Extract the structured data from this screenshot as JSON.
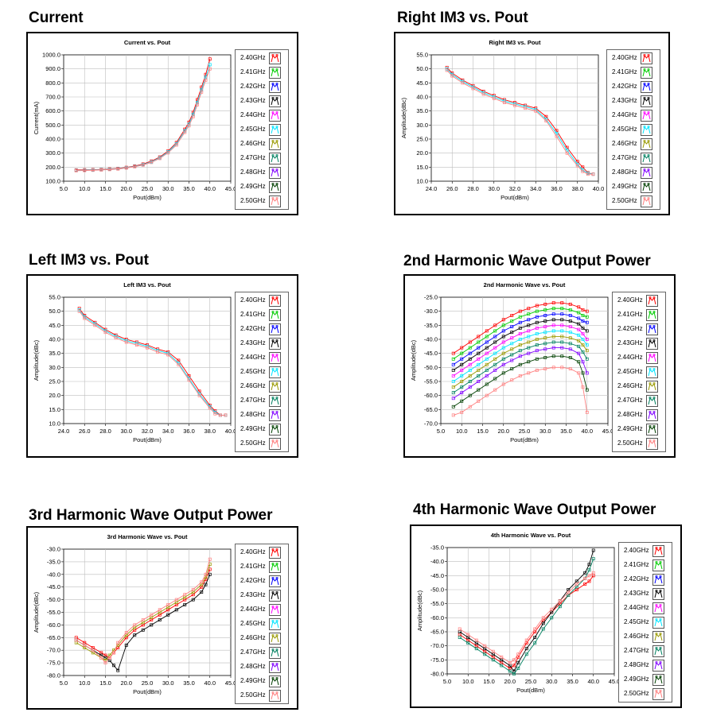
{
  "frequencies": [
    "2.40GHz",
    "2.41GHz",
    "2.42GHz",
    "2.43GHz",
    "2.44GHz",
    "2.45GHz",
    "2.46GHz",
    "2.47GHz",
    "2.48GHz",
    "2.49GHz",
    "2.50GHz"
  ],
  "series_colors": [
    "#ff0000",
    "#00cc00",
    "#0000ff",
    "#000000",
    "#ff00ff",
    "#00e5ff",
    "#999900",
    "#008060",
    "#8000ff",
    "#004000",
    "#ff8080"
  ],
  "chart_data": [
    {
      "id": "current",
      "section_title": "Current",
      "type": "line",
      "title": "Current vs. Pout",
      "xlabel": "Pout(dBm)",
      "ylabel": "Current(mA)",
      "xlim": [
        5,
        45
      ],
      "ylim": [
        100,
        1000
      ],
      "xticks": [
        "5.0",
        "10.0",
        "15.0",
        "20.0",
        "25.0",
        "30.0",
        "35.0",
        "40.0",
        "45.0"
      ],
      "yticks": [
        "100.0",
        "200.0",
        "300.0",
        "400.0",
        "500.0",
        "600.0",
        "700.0",
        "800.0",
        "900.0",
        "1000.0"
      ],
      "x": [
        8,
        10,
        12,
        14,
        16,
        18,
        20,
        22,
        24,
        26,
        28,
        30,
        32,
        34,
        35,
        36,
        37,
        38,
        39,
        40
      ],
      "series": [
        {
          "name": "2.40GHz",
          "values": [
            180,
            181,
            182,
            184,
            187,
            191,
            198,
            208,
            222,
            243,
            272,
            315,
            375,
            470,
            520,
            590,
            680,
            770,
            860,
            970
          ]
        },
        {
          "name": "2.45GHz",
          "values": [
            177,
            178,
            180,
            182,
            185,
            189,
            196,
            205,
            218,
            238,
            266,
            308,
            366,
            458,
            505,
            575,
            660,
            750,
            840,
            930
          ]
        },
        {
          "name": "2.50GHz",
          "values": [
            175,
            176,
            178,
            180,
            183,
            187,
            194,
            203,
            215,
            234,
            262,
            302,
            358,
            448,
            495,
            560,
            645,
            735,
            820,
            900
          ]
        }
      ]
    },
    {
      "id": "right-im3",
      "section_title": "Right IM3 vs. Pout",
      "type": "line",
      "title": "Right IM3 vs. Pout",
      "xlabel": "Pout(dBm)",
      "ylabel": "Amplitude(dBc)",
      "xlim": [
        24,
        40
      ],
      "ylim": [
        10,
        55
      ],
      "xticks": [
        "24.0",
        "26.0",
        "28.0",
        "30.0",
        "32.0",
        "34.0",
        "36.0",
        "38.0",
        "40.0"
      ],
      "yticks": [
        "10.0",
        "15.0",
        "20.0",
        "25.0",
        "30.0",
        "35.0",
        "40.0",
        "45.0",
        "50.0",
        "55.0"
      ],
      "x": [
        25.5,
        26,
        27,
        28,
        29,
        30,
        31,
        32,
        33,
        34,
        35,
        36,
        37,
        38,
        38.5,
        39,
        39.5
      ],
      "series": [
        {
          "name": "2.40GHz",
          "values": [
            50.5,
            48.5,
            46,
            44,
            42,
            40.5,
            39,
            38,
            37,
            36,
            33,
            28,
            22,
            17,
            15,
            13,
            12.5
          ]
        },
        {
          "name": "2.45GHz",
          "values": [
            50,
            48,
            45.5,
            43.5,
            41.5,
            40,
            38.5,
            37.5,
            36.5,
            35.5,
            32,
            27,
            21,
            16,
            14,
            12.8,
            12.5
          ]
        },
        {
          "name": "2.50GHz",
          "values": [
            49.5,
            47.5,
            45,
            43,
            41,
            39.5,
            38,
            37,
            36,
            35,
            31.5,
            26,
            20,
            15.5,
            13.5,
            12.5,
            12.5
          ]
        }
      ]
    },
    {
      "id": "left-im3",
      "section_title": "Left IM3 vs. Pout",
      "type": "line",
      "title": "Left IM3 vs. Pout",
      "xlabel": "Pout(dBm)",
      "ylabel": "Amplitude(dBc)",
      "xlim": [
        24,
        40
      ],
      "ylim": [
        10,
        55
      ],
      "xticks": [
        "24.0",
        "26.0",
        "28.0",
        "30.0",
        "32.0",
        "34.0",
        "36.0",
        "38.0",
        "40.0"
      ],
      "yticks": [
        "10.0",
        "15.0",
        "20.0",
        "25.0",
        "30.0",
        "35.0",
        "40.0",
        "45.0",
        "50.0",
        "55.0"
      ],
      "x": [
        25.5,
        26,
        27,
        28,
        29,
        30,
        31,
        32,
        33,
        34,
        35,
        36,
        37,
        38,
        38.5,
        39,
        39.5
      ],
      "series": [
        {
          "name": "2.40GHz",
          "values": [
            51,
            48.5,
            46,
            43.5,
            41.5,
            40,
            39,
            38,
            36.5,
            35.5,
            32.5,
            27,
            21.5,
            16.5,
            14.5,
            13,
            13
          ]
        },
        {
          "name": "2.45GHz",
          "values": [
            50.5,
            48,
            45.5,
            43,
            41,
            39.5,
            38.5,
            37.5,
            36,
            35,
            31.5,
            26,
            20.5,
            16,
            14,
            13,
            13
          ]
        },
        {
          "name": "2.50GHz",
          "values": [
            50,
            47.5,
            45,
            42.5,
            40.5,
            39,
            38,
            37,
            35.5,
            34.5,
            31,
            25.5,
            20,
            15.5,
            13.5,
            13,
            13
          ]
        }
      ]
    },
    {
      "id": "harmonic-2",
      "section_title": "2nd Harmonic Wave Output Power",
      "type": "line",
      "title": "2nd Harmonic Wave vs. Pout",
      "xlabel": "Pout(dBm)",
      "ylabel": "Amplitude(dBc)",
      "xlim": [
        5,
        45
      ],
      "ylim": [
        -70,
        -25
      ],
      "xticks": [
        "5.0",
        "10.0",
        "15.0",
        "20.0",
        "25.0",
        "30.0",
        "35.0",
        "40.0",
        "45.0"
      ],
      "yticks": [
        "-25.0",
        "-30.0",
        "-35.0",
        "-40.0",
        "-45.0",
        "-50.0",
        "-55.0",
        "-60.0",
        "-65.0",
        "-70.0"
      ],
      "x": [
        8,
        10,
        12,
        14,
        16,
        18,
        20,
        22,
        24,
        26,
        28,
        30,
        32,
        34,
        36,
        38,
        39,
        40
      ],
      "series": [
        {
          "name": "2.40GHz",
          "values": [
            -45,
            -43,
            -41,
            -39,
            -37,
            -35,
            -33,
            -31.5,
            -30,
            -29,
            -28,
            -27.5,
            -27,
            -27,
            -27.5,
            -28.5,
            -29.5,
            -30
          ]
        },
        {
          "name": "2.41GHz",
          "values": [
            -47,
            -45,
            -43,
            -41,
            -39,
            -37,
            -35,
            -33.5,
            -32,
            -31,
            -30,
            -29.5,
            -29,
            -29,
            -29.5,
            -30.5,
            -31.5,
            -32
          ]
        },
        {
          "name": "2.42GHz",
          "values": [
            -49,
            -47,
            -45,
            -43,
            -41,
            -39,
            -37,
            -35.5,
            -34,
            -33,
            -32,
            -31.5,
            -31,
            -31,
            -31.5,
            -32.5,
            -33.5,
            -34
          ]
        },
        {
          "name": "2.43GHz",
          "values": [
            -51,
            -49,
            -47,
            -45,
            -43,
            -41,
            -39,
            -37.5,
            -36,
            -35,
            -34,
            -33.5,
            -33,
            -33,
            -33.5,
            -34.5,
            -36,
            -37
          ]
        },
        {
          "name": "2.44GHz",
          "values": [
            -53,
            -51,
            -49,
            -47,
            -45,
            -43,
            -41,
            -39.5,
            -38,
            -37,
            -36,
            -35.5,
            -35,
            -35,
            -35.5,
            -36.5,
            -38,
            -40
          ]
        },
        {
          "name": "2.45GHz",
          "values": [
            -55,
            -53,
            -51,
            -49,
            -47,
            -45,
            -43,
            -41.5,
            -40,
            -39,
            -38,
            -37.5,
            -37,
            -37,
            -37.5,
            -38.5,
            -40,
            -42
          ]
        },
        {
          "name": "2.46GHz",
          "values": [
            -57,
            -55,
            -53,
            -51,
            -49,
            -47,
            -45,
            -43.5,
            -42,
            -41,
            -40,
            -39.5,
            -39,
            -39,
            -39.5,
            -40.5,
            -42,
            -44
          ]
        },
        {
          "name": "2.47GHz",
          "values": [
            -59,
            -57,
            -55,
            -53,
            -51,
            -49,
            -47,
            -45.5,
            -44,
            -43,
            -42,
            -41.5,
            -41,
            -41,
            -41.5,
            -42.5,
            -44.5,
            -47
          ]
        },
        {
          "name": "2.48GHz",
          "values": [
            -61,
            -59,
            -57,
            -55,
            -53,
            -51,
            -49,
            -47.5,
            -46,
            -45,
            -44,
            -43.5,
            -43,
            -43,
            -43.5,
            -45,
            -48,
            -52
          ]
        },
        {
          "name": "2.49GHz",
          "values": [
            -64,
            -62,
            -60,
            -58,
            -56,
            -54,
            -52,
            -50.5,
            -49,
            -48,
            -47,
            -46.5,
            -46,
            -46,
            -46.5,
            -48,
            -52,
            -58
          ]
        },
        {
          "name": "2.50GHz",
          "values": [
            -67,
            -66,
            -64,
            -62,
            -60,
            -58,
            -56,
            -54.5,
            -53,
            -52,
            -51,
            -50.5,
            -50,
            -50,
            -50.5,
            -52,
            -57,
            -66
          ]
        }
      ]
    },
    {
      "id": "harmonic-3",
      "section_title": "3rd Harmonic Wave Output Power",
      "type": "line",
      "title": "3rd Harmonic Wave vs. Pout",
      "xlabel": "Pout(dBm)",
      "ylabel": "Amplitude(dBc)",
      "xlim": [
        5,
        45
      ],
      "ylim": [
        -80,
        -30
      ],
      "xticks": [
        "5.0",
        "10.0",
        "15.0",
        "20.0",
        "25.0",
        "30.0",
        "35.0",
        "40.0",
        "45.0"
      ],
      "yticks": [
        "-30.0",
        "-35.0",
        "-40.0",
        "-45.0",
        "-50.0",
        "-55.0",
        "-60.0",
        "-65.0",
        "-70.0",
        "-75.0",
        "-80.0"
      ],
      "x": [
        8,
        10,
        12,
        14,
        15,
        16,
        17,
        18,
        20,
        22,
        24,
        26,
        28,
        30,
        32,
        34,
        36,
        38,
        39,
        40
      ],
      "series": [
        {
          "name": "2.40GHz",
          "values": [
            -65,
            -67,
            -69,
            -71,
            -72,
            -73,
            -71,
            -69,
            -65,
            -62,
            -60,
            -58,
            -56,
            -54,
            -52,
            -50,
            -48,
            -45,
            -42,
            -38
          ]
        },
        {
          "name": "2.43GHz",
          "values": [
            -66,
            -68,
            -70,
            -72,
            -73,
            -74,
            -76,
            -78,
            -68,
            -64,
            -62,
            -60,
            -58,
            -56,
            -54,
            -52,
            -50,
            -47,
            -44,
            -40
          ]
        },
        {
          "name": "2.46GHz",
          "values": [
            -67,
            -69,
            -71,
            -73,
            -74,
            -72,
            -70,
            -68,
            -64,
            -61,
            -59,
            -57,
            -55,
            -53,
            -51,
            -49,
            -47,
            -44,
            -41,
            -36
          ]
        },
        {
          "name": "2.50GHz",
          "values": [
            -66,
            -68,
            -70,
            -73,
            -75,
            -73,
            -71,
            -67,
            -63,
            -60,
            -58,
            -56,
            -54,
            -52,
            -50,
            -48,
            -46,
            -43,
            -40,
            -34
          ]
        }
      ]
    },
    {
      "id": "harmonic-4",
      "section_title": "4th Harmonic Wave Output Power",
      "type": "line",
      "title": "4th Harmonic Wave vs. Pout",
      "xlabel": "Pout(dBm)",
      "ylabel": "Amplitude(dBc)",
      "xlim": [
        5,
        45
      ],
      "ylim": [
        -80,
        -35
      ],
      "xticks": [
        "5.0",
        "10.0",
        "15.0",
        "20.0",
        "25.0",
        "30.0",
        "35.0",
        "40.0",
        "45.0"
      ],
      "yticks": [
        "-35.0",
        "-40.0",
        "-45.0",
        "-50.0",
        "-55.0",
        "-60.0",
        "-65.0",
        "-70.0",
        "-75.0",
        "-80.0"
      ],
      "x": [
        8,
        10,
        12,
        14,
        16,
        18,
        20,
        21,
        22,
        24,
        26,
        28,
        30,
        32,
        34,
        36,
        38,
        39,
        40
      ],
      "series": [
        {
          "name": "2.40GHz",
          "values": [
            -66,
            -68,
            -70,
            -72,
            -74,
            -76,
            -78,
            -77,
            -74,
            -69,
            -65,
            -61,
            -58,
            -55,
            -52,
            -50,
            -48,
            -47,
            -45
          ]
        },
        {
          "name": "2.43GHz",
          "values": [
            -65,
            -67,
            -69,
            -71,
            -73,
            -75,
            -77,
            -79,
            -76,
            -71,
            -67,
            -62,
            -58,
            -54,
            -50,
            -47,
            -44,
            -41,
            -36
          ]
        },
        {
          "name": "2.47GHz",
          "values": [
            -67,
            -69,
            -71,
            -73,
            -75,
            -77,
            -79,
            -80,
            -78,
            -73,
            -69,
            -64,
            -60,
            -56,
            -52,
            -49,
            -46,
            -43,
            -39
          ]
        },
        {
          "name": "2.50GHz",
          "values": [
            -64,
            -66,
            -68,
            -70,
            -72,
            -74,
            -76,
            -75,
            -73,
            -68,
            -64,
            -60,
            -57,
            -54,
            -51,
            -48,
            -46,
            -45,
            -44
          ]
        }
      ]
    }
  ]
}
